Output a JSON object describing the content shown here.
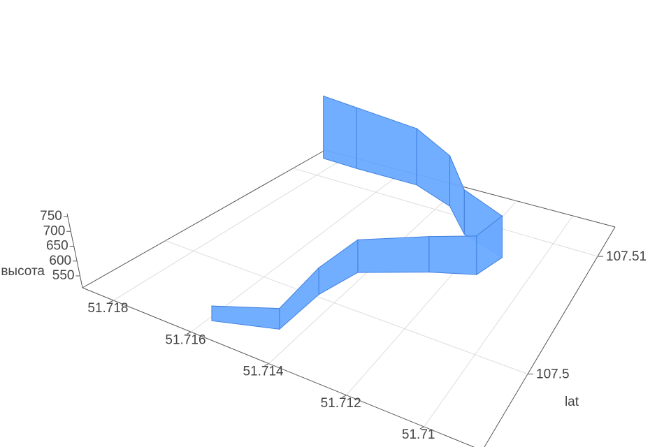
{
  "chart_data": {
    "type": "ribbon3d",
    "z_label": "высота",
    "y_label": "lat",
    "x": [
      51.7159,
      51.7145,
      51.7145,
      51.7142,
      51.7126,
      51.7114,
      51.7111,
      51.7126,
      51.7137,
      51.7152,
      51.7173,
      51.7185
    ],
    "y": [
      107.495,
      107.4964,
      107.5002,
      107.503,
      107.5049,
      107.5059,
      107.5078,
      107.5087,
      107.5106,
      107.5116,
      107.5116,
      107.5117
    ],
    "z": [
      560,
      580,
      600,
      620,
      630,
      640,
      650,
      660,
      680,
      700,
      715,
      720
    ],
    "color": "#6aaaff",
    "xlim": [
      51.7085,
      51.7188
    ],
    "xticks": [
      51.718,
      51.716,
      51.714,
      51.712,
      51.71
    ],
    "ylim": [
      107.4935,
      107.5125
    ],
    "yticks": [
      107.5,
      107.51
    ],
    "zlim": [
      510,
      760
    ],
    "zticks": [
      550,
      600,
      650,
      700,
      750
    ],
    "grid": true
  }
}
